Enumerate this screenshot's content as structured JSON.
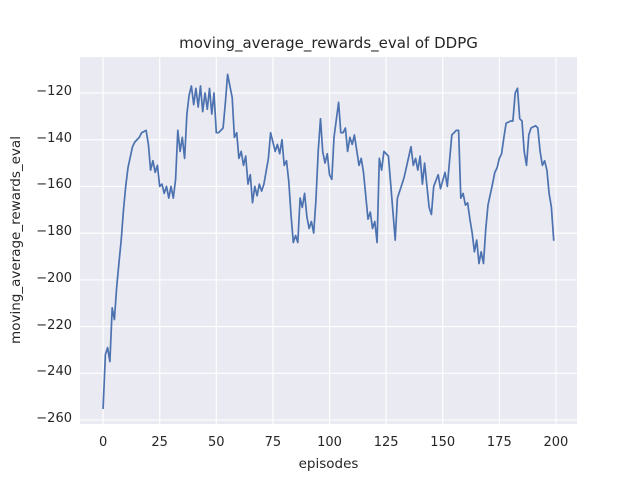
{
  "chart_data": {
    "type": "line",
    "title": "moving_average_rewards_eval of DDPG",
    "xlabel": "episodes",
    "ylabel": "moving_average_rewards_eval",
    "x_tick_values": [
      0,
      25,
      50,
      75,
      100,
      125,
      150,
      175,
      200
    ],
    "x_tick_labels": [
      "0",
      "25",
      "50",
      "75",
      "100",
      "125",
      "150",
      "175",
      "200"
    ],
    "y_tick_values": [
      -120,
      -140,
      -160,
      -180,
      -200,
      -220,
      -240,
      -260
    ],
    "y_tick_labels": [
      "−120",
      "−140",
      "−160",
      "−180",
      "−200",
      "−220",
      "−240",
      "−260"
    ],
    "xlim": [
      -10.2,
      209.3
    ],
    "ylim": [
      -261.7,
      -104.6
    ],
    "grid": true,
    "legend": "none",
    "style": {
      "figure_bg": "#ffffff",
      "plot_bg": "#eaeaf2",
      "grid_color": "#ffffff",
      "line_color": "#4c72b0",
      "text_color": "#262626"
    },
    "series": [
      {
        "name": "moving_average_rewards_eval",
        "points": [
          [
            0,
            -255
          ],
          [
            1,
            -232
          ],
          [
            2,
            -229
          ],
          [
            3,
            -235
          ],
          [
            4,
            -212
          ],
          [
            5,
            -217
          ],
          [
            6,
            -203
          ],
          [
            7,
            -193
          ],
          [
            8,
            -183
          ],
          [
            9,
            -170
          ],
          [
            10,
            -160
          ],
          [
            11,
            -152
          ],
          [
            13,
            -143
          ],
          [
            14,
            -141
          ],
          [
            16,
            -139
          ],
          [
            17,
            -137
          ],
          [
            19,
            -136
          ],
          [
            20,
            -142
          ],
          [
            21,
            -153
          ],
          [
            22,
            -149
          ],
          [
            23,
            -154
          ],
          [
            24,
            -151
          ],
          [
            25,
            -160
          ],
          [
            26,
            -159
          ],
          [
            27,
            -163
          ],
          [
            28,
            -160
          ],
          [
            29,
            -165
          ],
          [
            30,
            -160
          ],
          [
            31,
            -165
          ],
          [
            32,
            -157
          ],
          [
            33,
            -136
          ],
          [
            34,
            -145
          ],
          [
            35,
            -139
          ],
          [
            36,
            -148
          ],
          [
            37,
            -129
          ],
          [
            38,
            -121
          ],
          [
            39,
            -117
          ],
          [
            40,
            -125
          ],
          [
            41,
            -118
          ],
          [
            42,
            -126
          ],
          [
            43,
            -117
          ],
          [
            44,
            -128
          ],
          [
            45,
            -120
          ],
          [
            46,
            -127
          ],
          [
            47,
            -118
          ],
          [
            48,
            -129
          ],
          [
            49,
            -120
          ],
          [
            50,
            -137
          ],
          [
            51,
            -137
          ],
          [
            52,
            -136
          ],
          [
            53,
            -135
          ],
          [
            54,
            -124
          ],
          [
            55,
            -112
          ],
          [
            56,
            -117
          ],
          [
            57,
            -122
          ],
          [
            58,
            -139
          ],
          [
            59,
            -137
          ],
          [
            60,
            -148
          ],
          [
            61,
            -145
          ],
          [
            62,
            -151
          ],
          [
            63,
            -147
          ],
          [
            64,
            -159
          ],
          [
            65,
            -155
          ],
          [
            66,
            -167
          ],
          [
            67,
            -160
          ],
          [
            68,
            -164
          ],
          [
            69,
            -159
          ],
          [
            70,
            -162
          ],
          [
            71,
            -159
          ],
          [
            73,
            -148
          ],
          [
            74,
            -137
          ],
          [
            76,
            -145
          ],
          [
            77,
            -142
          ],
          [
            78,
            -146
          ],
          [
            79,
            -140
          ],
          [
            80,
            -151
          ],
          [
            81,
            -149
          ],
          [
            82,
            -158
          ],
          [
            83,
            -172
          ],
          [
            84,
            -184
          ],
          [
            85,
            -181
          ],
          [
            86,
            -184
          ],
          [
            87,
            -165
          ],
          [
            88,
            -169
          ],
          [
            89,
            -163
          ],
          [
            90,
            -173
          ],
          [
            91,
            -178
          ],
          [
            92,
            -175
          ],
          [
            93,
            -180
          ],
          [
            94,
            -166
          ],
          [
            95,
            -145
          ],
          [
            96,
            -131
          ],
          [
            97,
            -145
          ],
          [
            98,
            -150
          ],
          [
            99,
            -146
          ],
          [
            100,
            -155
          ],
          [
            101,
            -157
          ],
          [
            102,
            -139
          ],
          [
            104,
            -124
          ],
          [
            105,
            -137
          ],
          [
            106,
            -137
          ],
          [
            107,
            -135
          ],
          [
            108,
            -145
          ],
          [
            109,
            -139
          ],
          [
            110,
            -142
          ],
          [
            111,
            -138
          ],
          [
            113,
            -151
          ],
          [
            114,
            -148
          ],
          [
            115,
            -154
          ],
          [
            117,
            -174
          ],
          [
            118,
            -171
          ],
          [
            119,
            -178
          ],
          [
            120,
            -175
          ],
          [
            121,
            -184
          ],
          [
            122,
            -148
          ],
          [
            123,
            -153
          ],
          [
            124,
            -145
          ],
          [
            126,
            -147
          ],
          [
            127,
            -159
          ],
          [
            129,
            -183
          ],
          [
            130,
            -165
          ],
          [
            132,
            -159
          ],
          [
            133,
            -156
          ],
          [
            136,
            -143
          ],
          [
            137,
            -151
          ],
          [
            138,
            -148
          ],
          [
            139,
            -153
          ],
          [
            140,
            -147
          ],
          [
            141,
            -159
          ],
          [
            142,
            -150
          ],
          [
            144,
            -169
          ],
          [
            145,
            -172
          ],
          [
            146,
            -160
          ],
          [
            148,
            -155
          ],
          [
            149,
            -161
          ],
          [
            151,
            -154
          ],
          [
            152,
            -160
          ],
          [
            154,
            -138
          ],
          [
            156,
            -136
          ],
          [
            157,
            -136
          ],
          [
            158,
            -165
          ],
          [
            159,
            -163
          ],
          [
            160,
            -168
          ],
          [
            161,
            -167
          ],
          [
            162,
            -174
          ],
          [
            163,
            -180
          ],
          [
            164,
            -188
          ],
          [
            165,
            -183
          ],
          [
            166,
            -193
          ],
          [
            167,
            -188
          ],
          [
            168,
            -193
          ],
          [
            169,
            -178
          ],
          [
            170,
            -168
          ],
          [
            172,
            -159
          ],
          [
            173,
            -154
          ],
          [
            174,
            -152
          ],
          [
            175,
            -148
          ],
          [
            176,
            -146
          ],
          [
            177,
            -139
          ],
          [
            178,
            -133
          ],
          [
            180,
            -132
          ],
          [
            181,
            -132
          ],
          [
            182,
            -120
          ],
          [
            183,
            -118
          ],
          [
            184,
            -131
          ],
          [
            185,
            -132
          ],
          [
            186,
            -145
          ],
          [
            187,
            -151
          ],
          [
            188,
            -138
          ],
          [
            189,
            -135
          ],
          [
            191,
            -134
          ],
          [
            192,
            -135
          ],
          [
            193,
            -145
          ],
          [
            194,
            -151
          ],
          [
            195,
            -149
          ],
          [
            196,
            -153
          ],
          [
            197,
            -163
          ],
          [
            198,
            -169
          ],
          [
            199,
            -183
          ]
        ]
      }
    ]
  }
}
